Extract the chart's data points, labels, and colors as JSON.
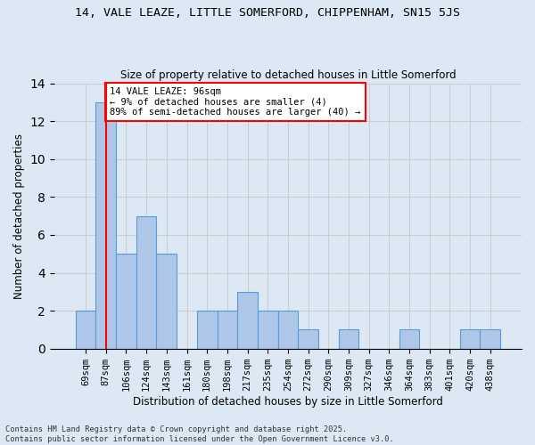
{
  "title1": "14, VALE LEAZE, LITTLE SOMERFORD, CHIPPENHAM, SN15 5JS",
  "title2": "Size of property relative to detached houses in Little Somerford",
  "xlabel": "Distribution of detached houses by size in Little Somerford",
  "ylabel": "Number of detached properties",
  "bins": [
    "69sqm",
    "87sqm",
    "106sqm",
    "124sqm",
    "143sqm",
    "161sqm",
    "180sqm",
    "198sqm",
    "217sqm",
    "235sqm",
    "254sqm",
    "272sqm",
    "290sqm",
    "309sqm",
    "327sqm",
    "346sqm",
    "364sqm",
    "383sqm",
    "401sqm",
    "420sqm",
    "438sqm"
  ],
  "counts": [
    2,
    13,
    5,
    7,
    5,
    0,
    2,
    2,
    3,
    2,
    2,
    1,
    0,
    1,
    0,
    0,
    1,
    0,
    0,
    1,
    1
  ],
  "bar_color": "#aec6e8",
  "bar_edge_color": "#5b9bd5",
  "red_line_bin_index": 1,
  "annotation_text": "14 VALE LEAZE: 96sqm\n← 9% of detached houses are smaller (4)\n89% of semi-detached houses are larger (40) →",
  "annotation_box_color": "white",
  "annotation_box_edge": "red",
  "footer": "Contains HM Land Registry data © Crown copyright and database right 2025.\nContains public sector information licensed under the Open Government Licence v3.0.",
  "ylim": [
    0,
    14
  ],
  "yticks": [
    0,
    2,
    4,
    6,
    8,
    10,
    12,
    14
  ],
  "grid_color": "#cccccc",
  "bg_color": "#dce9f5"
}
